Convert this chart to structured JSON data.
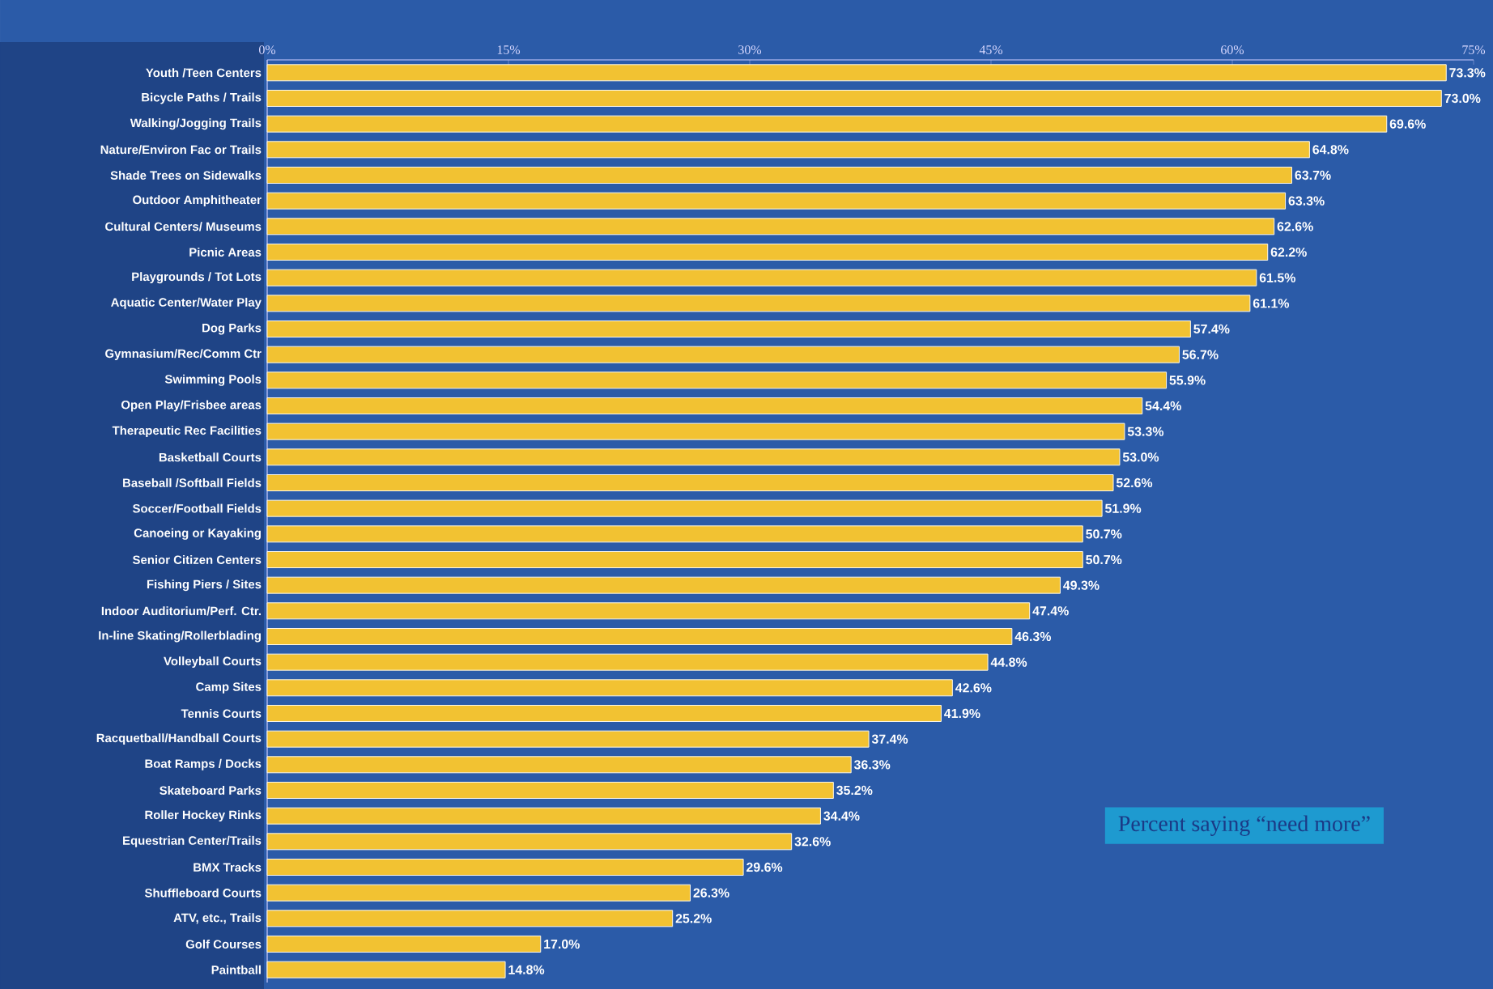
{
  "chart_data": {
    "type": "bar",
    "orientation": "horizontal",
    "color": "#f2c232",
    "categories": [
      "Youth /Teen Centers",
      "Bicycle Paths / Trails",
      "Walking/Jogging Trails",
      "Nature/Environ Fac or Trails",
      "Shade Trees on Sidewalks",
      "Outdoor Amphitheater",
      "Cultural Centers/ Museums",
      "Picnic Areas",
      "Playgrounds / Tot Lots",
      "Aquatic Center/Water Play",
      "Dog Parks",
      "Gymnasium/Rec/Comm Ctr",
      "Swimming Pools",
      "Open Play/Frisbee areas",
      "Therapeutic Rec Facilities",
      "Basketball Courts",
      "Baseball /Softball Fields",
      "Soccer/Football Fields",
      "Canoeing or Kayaking",
      "Senior Citizen Centers",
      "Fishing Piers / Sites",
      "Indoor Auditorium/Perf. Ctr.",
      "In-line Skating/Rollerblading",
      "Volleyball Courts",
      "Camp Sites",
      "Tennis Courts",
      "Racquetball/Handball Courts",
      "Boat Ramps / Docks",
      "Skateboard Parks",
      "Roller Hockey Rinks",
      "Equestrian Center/Trails",
      "BMX Tracks",
      "Shuffleboard Courts",
      "ATV, etc., Trails",
      "Golf Courses",
      "Paintball"
    ],
    "values": [
      73.3,
      73.0,
      69.6,
      64.8,
      63.7,
      63.3,
      62.6,
      62.2,
      61.5,
      61.1,
      57.4,
      56.7,
      55.9,
      54.4,
      53.3,
      53.0,
      52.6,
      51.9,
      50.7,
      50.7,
      49.3,
      47.4,
      46.3,
      44.8,
      42.6,
      41.9,
      37.4,
      36.3,
      35.2,
      34.4,
      32.6,
      29.6,
      26.3,
      25.2,
      17.0,
      14.8
    ],
    "value_labels": [
      "73.3%",
      "73.0%",
      "69.6%",
      "64.8%",
      "63.7%",
      "63.3%",
      "62.6%",
      "62.2%",
      "61.5%",
      "61.1%",
      "57.4%",
      "56.7%",
      "55.9%",
      "54.4%",
      "53.3%",
      "53.0%",
      "52.6%",
      "51.9%",
      "50.7%",
      "50.7%",
      "49.3%",
      "47.4%",
      "46.3%",
      "44.8%",
      "42.6%",
      "41.9%",
      "37.4%",
      "36.3%",
      "35.2%",
      "34.4%",
      "32.6%",
      "29.6%",
      "26.3%",
      "25.2%",
      "17.0%",
      "14.8%"
    ],
    "xlim": [
      0,
      75
    ],
    "xticks": [
      {
        "value": 0,
        "label": "0%"
      },
      {
        "value": 15,
        "label": "15%"
      },
      {
        "value": 30,
        "label": "30%"
      },
      {
        "value": 45,
        "label": "45%"
      },
      {
        "value": 60,
        "label": "60%"
      },
      {
        "value": 75,
        "label": "75%"
      }
    ],
    "annotations": [
      "Percent saying “need more”"
    ]
  }
}
